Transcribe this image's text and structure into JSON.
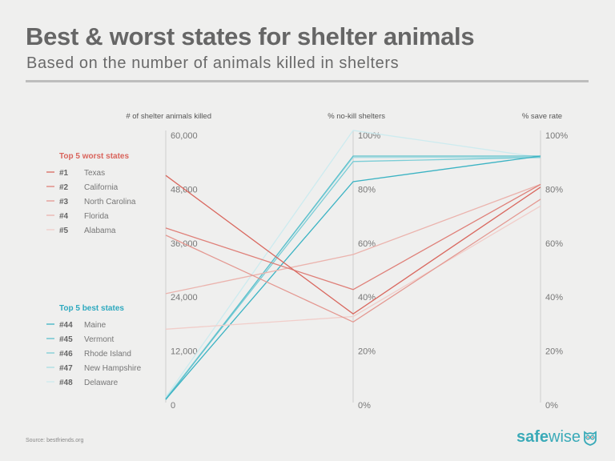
{
  "header": {
    "title": "Best & worst states for shelter animals",
    "subtitle": "Based on the number of animals killed in shelters"
  },
  "footer": {
    "source": "Source: bestfriends.org",
    "logo_bold": "safe",
    "logo_light": "wise",
    "logo_icon": "owl-shield-icon",
    "brand_color": "#3aaab8"
  },
  "chart_data": {
    "type": "parallel-coordinates",
    "title": "Best & worst states for shelter animals",
    "subtitle": "Based on the number of animals killed in shelters",
    "axes": [
      {
        "key": "killed",
        "label": "# of shelter animals killed",
        "range": [
          0,
          60000
        ],
        "ticks": [
          "0",
          "12,000",
          "24,000",
          "36,000",
          "48,000",
          "60,000"
        ],
        "tick_values": [
          0,
          12000,
          24000,
          36000,
          48000,
          60000
        ]
      },
      {
        "key": "nokill",
        "label": "% no-kill shelters",
        "range": [
          0,
          100
        ],
        "ticks": [
          "0%",
          "20%",
          "40%",
          "60%",
          "80%",
          "100%"
        ],
        "tick_values": [
          0,
          20,
          40,
          60,
          80,
          100
        ]
      },
      {
        "key": "save",
        "label": "% save rate",
        "range": [
          0,
          100
        ],
        "ticks": [
          "0%",
          "20%",
          "40%",
          "60%",
          "80%",
          "100%"
        ],
        "tick_values": [
          0,
          20,
          40,
          60,
          80,
          100
        ]
      }
    ],
    "groups": [
      {
        "name": "Top 5 worst states",
        "color": "#d9645c",
        "series": [
          {
            "rank": "#1",
            "name": "Texas",
            "color": "#d9685f",
            "values": {
              "killed": 50000,
              "nokill": 32,
              "save": 79
            }
          },
          {
            "rank": "#2",
            "name": "California",
            "color": "#df8079",
            "values": {
              "killed": 38300,
              "nokill": 41,
              "save": 80
            }
          },
          {
            "rank": "#3",
            "name": "North Carolina",
            "color": "#e49891",
            "values": {
              "killed": 36700,
              "nokill": 29,
              "save": 74.5
            }
          },
          {
            "rank": "#4",
            "name": "Florida",
            "color": "#ebb3ad",
            "values": {
              "killed": 23700,
              "nokill": 54,
              "save": 80
            }
          },
          {
            "rank": "#5",
            "name": "Alabama",
            "color": "#f1cdc9",
            "values": {
              "killed": 15800,
              "nokill": 31,
              "save": 72
            }
          }
        ]
      },
      {
        "name": "Top 5 best states",
        "color": "#2ea9bf",
        "series": [
          {
            "rank": "#44",
            "name": "Maine",
            "color": "#3bb3c3",
            "values": {
              "killed": 200,
              "nokill": 81,
              "save": 90.5
            }
          },
          {
            "rank": "#45",
            "name": "Vermont",
            "color": "#5cc0cc",
            "values": {
              "killed": 100,
              "nokill": 90.5,
              "save": 90.5
            }
          },
          {
            "rank": "#46",
            "name": "Rhode Island",
            "color": "#7bcdd6",
            "values": {
              "killed": 300,
              "nokill": 88.5,
              "save": 90
            }
          },
          {
            "rank": "#47",
            "name": "New Hampshire",
            "color": "#a8dde3",
            "values": {
              "killed": 400,
              "nokill": 90,
              "save": 90
            }
          },
          {
            "rank": "#48",
            "name": "Delaware",
            "color": "#cdebef",
            "values": {
              "killed": 700,
              "nokill": 100,
              "save": 90
            }
          }
        ]
      }
    ],
    "grid": false,
    "legend_position": "left"
  }
}
